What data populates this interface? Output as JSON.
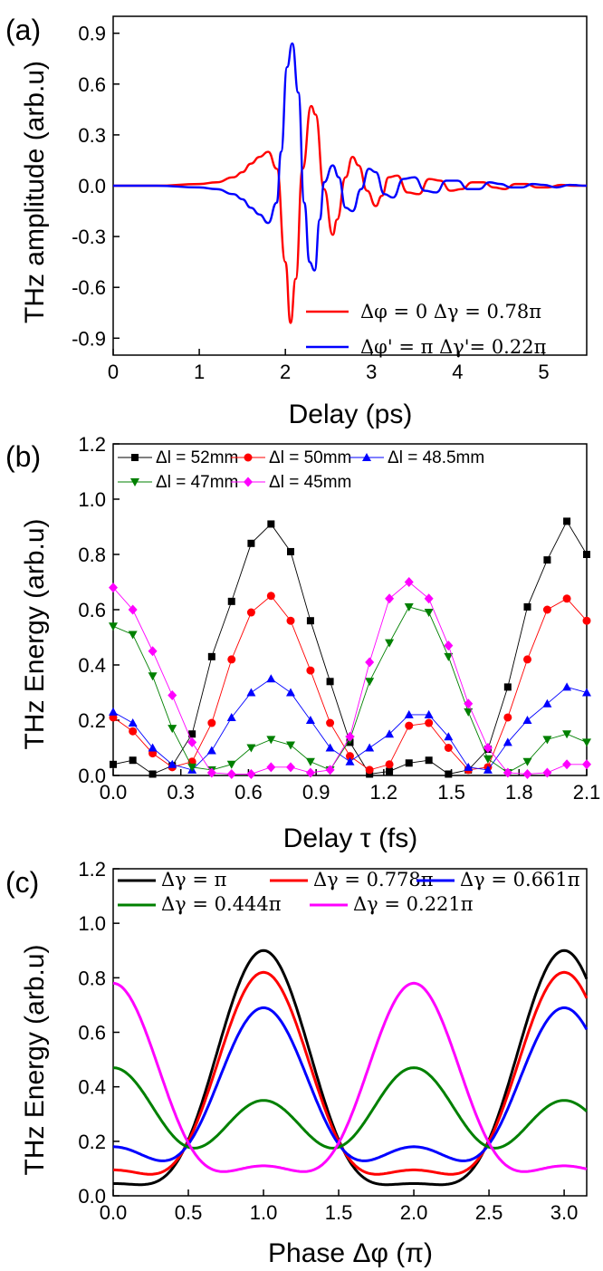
{
  "chart_data": [
    {
      "panel": "(a)",
      "type": "line",
      "xlabel": "Delay (ps)",
      "ylabel": "THz amplitude (arb.u)",
      "xlim": [
        0,
        5.5
      ],
      "ylim": [
        -1.0,
        1.0
      ],
      "xticks": [
        "0",
        "1",
        "2",
        "3",
        "4",
        "5"
      ],
      "yticks": [
        "-0.9",
        "-0.6",
        "-0.3",
        "0.0",
        "0.3",
        "0.6",
        "0.9"
      ],
      "legend_position": "bottom-right",
      "series": [
        {
          "name": "Δφ = 0  Δγ = 0.78π",
          "color": "#ff0000",
          "x": [
            0,
            0.5,
            1.0,
            1.2,
            1.4,
            1.5,
            1.6,
            1.7,
            1.8,
            1.9,
            2.0,
            2.06,
            2.12,
            2.2,
            2.3,
            2.35,
            2.45,
            2.55,
            2.6,
            2.7,
            2.78,
            2.85,
            2.95,
            3.05,
            3.12,
            3.2,
            3.3,
            3.42,
            3.55,
            3.67,
            3.8,
            3.92,
            4.05,
            4.17,
            4.3,
            4.42,
            4.55,
            4.67,
            4.8,
            4.92,
            5.05,
            5.2,
            5.35,
            5.5
          ],
          "y": [
            0,
            0,
            0.01,
            0.02,
            0.05,
            0.08,
            0.13,
            0.17,
            0.2,
            0.1,
            -0.45,
            -0.81,
            -0.55,
            0.1,
            0.47,
            0.42,
            -0.02,
            -0.29,
            -0.2,
            0.05,
            0.17,
            0.12,
            -0.03,
            -0.12,
            -0.06,
            0.05,
            0.06,
            -0.04,
            -0.05,
            0.04,
            0.03,
            -0.03,
            -0.02,
            0.02,
            0.02,
            -0.01,
            -0.02,
            0.01,
            0.01,
            -0.01,
            -0.01,
            0.005,
            0,
            0
          ]
        },
        {
          "name": "Δφ' = π Δγ'= 0.22π",
          "color": "#0000ff",
          "x": [
            0,
            0.5,
            1.0,
            1.2,
            1.4,
            1.5,
            1.6,
            1.7,
            1.8,
            1.9,
            1.95,
            2.02,
            2.08,
            2.15,
            2.22,
            2.28,
            2.34,
            2.4,
            2.45,
            2.55,
            2.62,
            2.7,
            2.78,
            2.88,
            2.97,
            3.05,
            3.15,
            3.25,
            3.37,
            3.5,
            3.62,
            3.75,
            3.87,
            4.0,
            4.12,
            4.25,
            4.37,
            4.5,
            4.62,
            4.75,
            4.87,
            5.0,
            5.15,
            5.3,
            5.5
          ],
          "y": [
            0,
            0,
            -0.01,
            -0.02,
            -0.05,
            -0.08,
            -0.13,
            -0.17,
            -0.22,
            -0.1,
            0.2,
            0.7,
            0.84,
            0.55,
            -0.1,
            -0.45,
            -0.5,
            -0.2,
            0.02,
            0.12,
            0.05,
            -0.13,
            -0.15,
            -0.02,
            0.1,
            0.08,
            -0.05,
            -0.07,
            0.04,
            0.05,
            -0.03,
            -0.04,
            0.03,
            0.03,
            -0.02,
            -0.02,
            0.02,
            0.01,
            -0.01,
            -0.01,
            0.01,
            0.005,
            -0.01,
            0.005,
            0
          ]
        }
      ]
    },
    {
      "panel": "(b)",
      "type": "scatter",
      "xlabel": "Delay τ (fs)",
      "ylabel": "THz Energy (arb.u)",
      "xlim": [
        0,
        2.1
      ],
      "ylim": [
        0,
        1.2
      ],
      "xticks": [
        "0.0",
        "0.3",
        "0.6",
        "0.9",
        "1.2",
        "1.5",
        "1.8",
        "2.1"
      ],
      "yticks": [
        "0.0",
        "0.2",
        "0.4",
        "0.6",
        "0.8",
        "1.0",
        "1.2"
      ],
      "legend_position": "top",
      "x": [
        0,
        0.087,
        0.175,
        0.262,
        0.35,
        0.437,
        0.525,
        0.612,
        0.7,
        0.787,
        0.875,
        0.962,
        1.05,
        1.137,
        1.225,
        1.312,
        1.4,
        1.487,
        1.575,
        1.662,
        1.75,
        1.837,
        1.925,
        2.012,
        2.1
      ],
      "series": [
        {
          "name": "Δl = 52mm",
          "marker": "square",
          "color": "#000000",
          "values": [
            0.04,
            0.055,
            0.005,
            0.035,
            0.15,
            0.43,
            0.63,
            0.84,
            0.91,
            0.81,
            0.56,
            0.34,
            0.12,
            0.005,
            0.015,
            0.045,
            0.055,
            0.005,
            0.02,
            0.095,
            0.32,
            0.61,
            0.78,
            0.92,
            0.8
          ]
        },
        {
          "name": "Δl = 50mm",
          "marker": "circle",
          "color": "#ff0000",
          "values": [
            0.21,
            0.16,
            0.08,
            0.03,
            0.05,
            0.19,
            0.42,
            0.59,
            0.65,
            0.56,
            0.38,
            0.19,
            0.07,
            0.02,
            0.04,
            0.18,
            0.19,
            0.1,
            0.02,
            0.03,
            0.21,
            0.42,
            0.6,
            0.64,
            0.56
          ]
        },
        {
          "name": "Δl = 48.5mm",
          "marker": "triangle-up",
          "color": "#0000ff",
          "values": [
            0.23,
            0.19,
            0.1,
            0.04,
            0.02,
            0.09,
            0.21,
            0.3,
            0.35,
            0.3,
            0.2,
            0.1,
            0.05,
            0.1,
            0.15,
            0.22,
            0.22,
            0.14,
            0.03,
            0.02,
            0.12,
            0.2,
            0.26,
            0.32,
            0.3
          ]
        },
        {
          "name": "Δl = 47mm",
          "marker": "triangle-down",
          "color": "#008000",
          "values": [
            0.54,
            0.51,
            0.36,
            0.17,
            0.03,
            0.02,
            0.04,
            0.1,
            0.13,
            0.11,
            0.05,
            0.02,
            0.13,
            0.34,
            0.48,
            0.61,
            0.59,
            0.43,
            0.23,
            0.06,
            0.01,
            0.05,
            0.13,
            0.15,
            0.12
          ]
        },
        {
          "name": "Δl = 45mm",
          "marker": "diamond",
          "color": "#ff00ff",
          "values": [
            0.68,
            0.6,
            0.45,
            0.29,
            0.12,
            0.01,
            0.005,
            0.005,
            0.03,
            0.03,
            0.01,
            0.02,
            0.14,
            0.41,
            0.64,
            0.7,
            0.64,
            0.47,
            0.26,
            0.1,
            0.01,
            0.005,
            0.01,
            0.04,
            0.04
          ]
        }
      ]
    },
    {
      "panel": "(c)",
      "type": "line",
      "xlabel": "Phase Δφ (π)",
      "ylabel": "THz Energy (arb.u)",
      "xlim": [
        0,
        3.15
      ],
      "ylim": [
        0,
        1.2
      ],
      "xticks": [
        "0.0",
        "0.5",
        "1.0",
        "1.5",
        "2.0",
        "2.5",
        "3.0"
      ],
      "yticks": [
        "0.0",
        "0.2",
        "0.4",
        "0.6",
        "0.8",
        "1.0",
        "1.2"
      ],
      "legend_position": "top",
      "series": [
        {
          "name": "Δγ = π",
          "color": "#000000",
          "phase": 0.0,
          "peak_at_1": 0.9,
          "value_at_0": 0.045
        },
        {
          "name": "Δγ = 0.778π",
          "color": "#ff0000",
          "phase": 0.111,
          "peak_at_1": 0.82,
          "value_at_0": 0.095
        },
        {
          "name": "Δγ = 0.661π",
          "color": "#0000ff",
          "phase": 0.17,
          "peak_at_1": 0.69,
          "value_at_0": 0.18
        },
        {
          "name": "Δγ = 0.444π",
          "color": "#008000",
          "phase": 0.278,
          "peak_at_1": 0.35,
          "value_at_0": 0.47
        },
        {
          "name": "Δγ = 0.221π",
          "color": "#ff00ff",
          "phase": 0.39,
          "peak_at_1": 0.11,
          "value_at_0": 0.78
        }
      ]
    }
  ],
  "panel_labels": [
    "(a)",
    "(b)",
    "(c)"
  ]
}
